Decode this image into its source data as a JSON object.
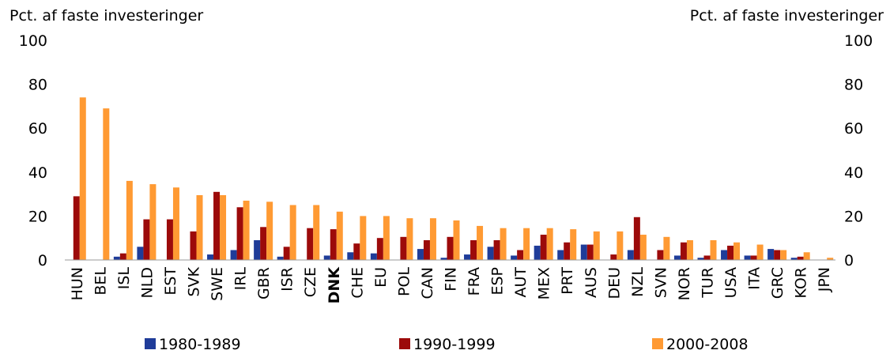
{
  "chart_data": {
    "type": "bar",
    "ylabel": "Pct. af faste investeringer",
    "y2label": "Pct. af faste investeringer",
    "categories": [
      "HUN",
      "BEL",
      "ISL",
      "NLD",
      "EST",
      "SVK",
      "SWE",
      "IRL",
      "GBR",
      "ISR",
      "CZE",
      "DNK",
      "CHE",
      "EU",
      "POL",
      "CAN",
      "FIN",
      "FRA",
      "ESP",
      "AUT",
      "MEX",
      "PRT",
      "AUS",
      "DEU",
      "NZL",
      "SVN",
      "NOR",
      "TUR",
      "USA",
      "ITA",
      "GRC",
      "KOR",
      "JPN"
    ],
    "highlight": "DNK",
    "series": [
      {
        "name": "1980-1989",
        "color": "#1f3c99",
        "values": [
          0,
          0,
          1.5,
          6,
          0,
          0,
          2.5,
          4.5,
          9,
          1.5,
          0,
          2,
          3.5,
          3,
          0,
          5,
          1,
          2.5,
          6,
          2,
          6.5,
          4.5,
          7,
          0,
          4.5,
          0,
          2,
          1,
          4.5,
          2,
          5,
          1,
          0
        ]
      },
      {
        "name": "1990-1999",
        "color": "#9c0a0a",
        "values": [
          29,
          0,
          3,
          18.5,
          18.5,
          13,
          31,
          24,
          15,
          6,
          14.5,
          14,
          7.5,
          10,
          10.5,
          9,
          10.5,
          9,
          9,
          4.5,
          11.5,
          8,
          7,
          2.5,
          19.5,
          4.5,
          8,
          2,
          6.5,
          2,
          4.5,
          1.5,
          0
        ]
      },
      {
        "name": "2000-2008",
        "color": "#ff9a33",
        "values": [
          74,
          69,
          36,
          34.5,
          33,
          29.5,
          29.5,
          27,
          26.5,
          25,
          25,
          22,
          20,
          20,
          19,
          19,
          18,
          15.5,
          14.5,
          14.5,
          14.5,
          14,
          13,
          13,
          11.5,
          10.5,
          9,
          9,
          8,
          7,
          4.5,
          3.5,
          1
        ]
      }
    ],
    "ylim": [
      0,
      100
    ],
    "yticks": [
      0,
      20,
      40,
      60,
      80,
      100
    ],
    "y2lim": [
      0,
      100
    ],
    "y2ticks": [
      0,
      20,
      40,
      60,
      80,
      100
    ]
  }
}
